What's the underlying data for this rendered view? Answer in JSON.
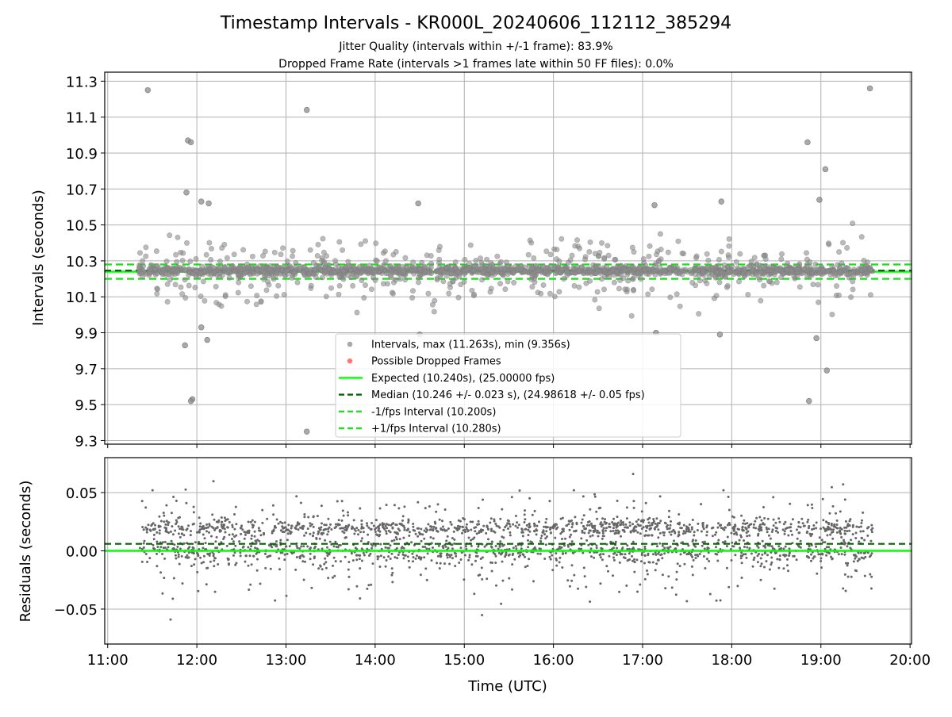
{
  "figure": {
    "title": "Timestamp Intervals - KR000L_20240606_112112_385294",
    "subtitle_1": "Jitter Quality (intervals within +/-1 frame): 83.9%",
    "subtitle_2": "Dropped Frame Rate (intervals >1 frames late within 50 FF files): 0.0%"
  },
  "colors": {
    "intervals": "#8c8c8c",
    "dropped": "#ff4d4d",
    "expected": "#00ff00",
    "median": "#006400",
    "bounds": "#22dd22",
    "residuals": "#666666",
    "grid": "#b0b0b0"
  },
  "chart_data": [
    {
      "type": "scatter",
      "panel": "intervals",
      "ylabel": "Intervals (seconds)",
      "xlabel": "",
      "xlim": [
        "10:58",
        "20:01"
      ],
      "ylim": [
        9.28,
        11.35
      ],
      "yticks": [
        "9.3",
        "9.5",
        "9.7",
        "9.9",
        "10.1",
        "10.3",
        "10.5",
        "10.7",
        "10.9",
        "11.1",
        "11.3"
      ],
      "grid": true,
      "legend_position": "lower center",
      "legend": [
        {
          "label": "Intervals, max (11.263s), min (9.356s)",
          "marker": "dot",
          "color": "#8c8c8c"
        },
        {
          "label": "Possible Dropped Frames",
          "marker": "dot",
          "color": "#ff4d4d"
        },
        {
          "label": "Expected (10.240s), (25.00000 fps)",
          "marker": "solid",
          "color": "#00ff00"
        },
        {
          "label": "Median (10.246 +/- 0.023 s), (24.98618 +/- 0.05 fps)",
          "marker": "dashed",
          "color": "#006400"
        },
        {
          "label": "-1/fps Interval (10.200s)",
          "marker": "dashed",
          "color": "#22dd22"
        },
        {
          "label": "+1/fps Interval (10.280s)",
          "marker": "dashed",
          "color": "#22dd22"
        }
      ],
      "reference_lines": {
        "expected": 10.24,
        "median": 10.246,
        "lower": 10.2,
        "upper": 10.28
      },
      "series": [
        {
          "name": "Intervals, max (11.263s), min (9.356s)",
          "time_range": [
            "11:21",
            "19:35"
          ],
          "typical_range": [
            10.2,
            10.28
          ],
          "max": 11.263,
          "min": 9.356,
          "outliers": [
            {
              "x": "11:27",
              "y": 11.25
            },
            {
              "x": "11:54",
              "y": 10.97
            },
            {
              "x": "11:56",
              "y": 10.96
            },
            {
              "x": "11:53",
              "y": 10.68
            },
            {
              "x": "12:03",
              "y": 10.63
            },
            {
              "x": "12:08",
              "y": 10.62
            },
            {
              "x": "11:57",
              "y": 9.53
            },
            {
              "x": "11:56",
              "y": 9.52
            },
            {
              "x": "11:52",
              "y": 9.83
            },
            {
              "x": "12:07",
              "y": 9.86
            },
            {
              "x": "12:03",
              "y": 9.93
            },
            {
              "x": "13:14",
              "y": 11.14
            },
            {
              "x": "13:14",
              "y": 9.35
            },
            {
              "x": "14:29",
              "y": 10.62
            },
            {
              "x": "14:30",
              "y": 9.89
            },
            {
              "x": "17:08",
              "y": 10.61
            },
            {
              "x": "17:09",
              "y": 9.9
            },
            {
              "x": "17:53",
              "y": 10.63
            },
            {
              "x": "17:52",
              "y": 9.89
            },
            {
              "x": "18:51",
              "y": 10.96
            },
            {
              "x": "18:52",
              "y": 9.52
            },
            {
              "x": "19:03",
              "y": 10.81
            },
            {
              "x": "19:04",
              "y": 9.69
            },
            {
              "x": "18:59",
              "y": 10.64
            },
            {
              "x": "18:57",
              "y": 9.87
            },
            {
              "x": "19:33",
              "y": 11.26
            }
          ]
        },
        {
          "name": "Possible Dropped Frames",
          "points": []
        }
      ]
    },
    {
      "type": "scatter",
      "panel": "residuals",
      "ylabel": "Residuals (seconds)",
      "xlabel": "Time (UTC)",
      "xlim": [
        "10:58",
        "20:01"
      ],
      "xticks": [
        "11:00",
        "12:00",
        "13:00",
        "14:00",
        "15:00",
        "16:00",
        "17:00",
        "18:00",
        "19:00",
        "20:00"
      ],
      "ylim": [
        -0.08,
        0.08
      ],
      "yticks": [
        "−0.05",
        "0.00",
        "0.05"
      ],
      "grid": true,
      "reference_lines": {
        "zero": 0.0,
        "median_offset": 0.006
      },
      "series": [
        {
          "name": "Residuals",
          "time_range": [
            "11:21",
            "19:35"
          ],
          "typical_range": [
            -0.03,
            0.04
          ],
          "color": "#666666"
        }
      ]
    }
  ]
}
